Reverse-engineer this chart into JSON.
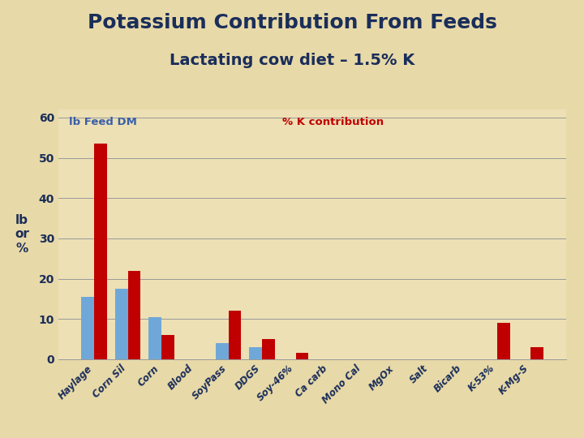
{
  "title_line1": "Potassium Contribution From Feeds",
  "title_line2": "Lactating cow diet – 1.5% K",
  "categories": [
    "Haylage",
    "Corn Sil",
    "Corn",
    "Blood",
    "SoyPass",
    "DDGS",
    "Soy-46%",
    "Ca carb",
    "Mono Cal",
    "MgOx",
    "Salt",
    "Bicarb",
    "K-53%",
    "K-Mg-S"
  ],
  "lb_feed_dm": [
    15.5,
    17.5,
    10.5,
    0,
    4,
    3,
    0,
    0,
    0,
    0,
    0,
    0,
    0,
    0
  ],
  "pct_k_contribution": [
    53.5,
    22,
    6,
    0,
    12,
    5,
    1.5,
    0,
    0,
    0,
    0,
    0,
    9,
    3
  ],
  "bar_color_blue": "#6FA8D8",
  "bar_color_red": "#C00000",
  "background_color": "#E8D9A8",
  "plot_bg_color": "#EDE0B5",
  "legend_lb_label": "lb Feed DM",
  "legend_pct_label": "% K contribution",
  "ylabel": "lb\nor\n%",
  "ylim": [
    0,
    62
  ],
  "yticks": [
    0,
    10,
    20,
    30,
    40,
    50,
    60
  ],
  "title_color": "#1A2E5A",
  "legend_lb_color": "#3A5FA8",
  "legend_pct_color": "#C00000",
  "grid_color": "#999999",
  "tick_label_color": "#1A2E5A",
  "ylabel_color": "#1A2E5A",
  "title1_fontsize": 18,
  "title2_fontsize": 14,
  "bar_width": 0.38
}
